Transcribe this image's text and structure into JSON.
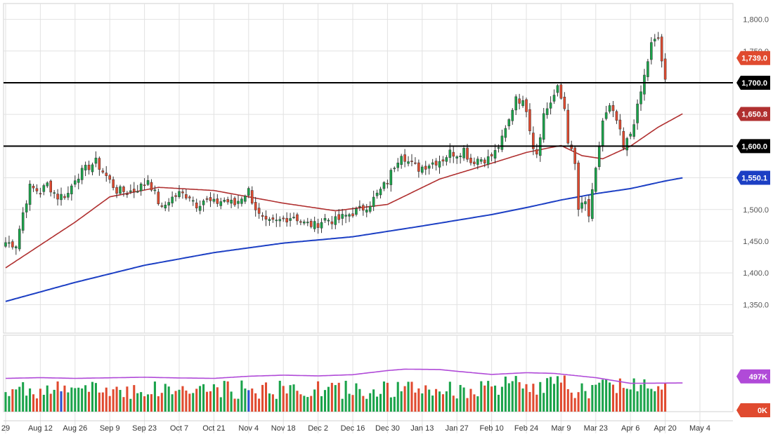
{
  "colors": {
    "up": "#1aa34a",
    "down": "#e04a2f",
    "ma50": "#b03030",
    "ma200": "#1c3fc4",
    "volume_avg": "#b04ad8",
    "grid": "#e2e2e2",
    "resistance": "#000000",
    "volume_special": "#2b4fd0"
  },
  "chart_data": {
    "type": "candlestick",
    "price_axis": {
      "range": [
        1305,
        1825
      ],
      "ticks": [
        1350,
        1400,
        1450,
        1500,
        1550,
        1600,
        1650,
        1700,
        1750,
        1800
      ],
      "tick_labels": [
        "1,350.0",
        "1,400.0",
        "1,450.0",
        "1,500.0",
        "1,550.0",
        "1,600.0",
        "1,650.0",
        "1,700.0",
        "1,750.0",
        "1,800.0"
      ]
    },
    "time_axis": {
      "labels": [
        "29",
        "Aug 12",
        "Aug 26",
        "Sep 9",
        "Sep 23",
        "Oct 7",
        "Oct 21",
        "Nov 4",
        "Nov 18",
        "Dec 2",
        "Dec 16",
        "Dec 30",
        "Jan 13",
        "Jan 27",
        "Feb 10",
        "Feb 24",
        "Mar 9",
        "Mar 23",
        "Apr 6",
        "Apr 20",
        "May 4"
      ],
      "label_positions": [
        0,
        10,
        20,
        30,
        40,
        50,
        60,
        70,
        80,
        90,
        100,
        110,
        120,
        130,
        140,
        150,
        160,
        170,
        180,
        190,
        200
      ]
    },
    "horizontal_lines": [
      {
        "value": 1700,
        "label": "1,700.0"
      },
      {
        "value": 1600,
        "label": "1,600.0"
      }
    ],
    "price_badges": [
      {
        "value": 1739,
        "label": "1,739.0",
        "color": "#e04a2f"
      },
      {
        "value": 1700,
        "label": "1,700.0",
        "color": "#000000"
      },
      {
        "value": 1650.8,
        "label": "1,650.8",
        "color": "#b03030"
      },
      {
        "value": 1600,
        "label": "1,600.0",
        "color": "#000000"
      },
      {
        "value": 1550.1,
        "label": "1,550.1",
        "color": "#1c3fc4"
      }
    ],
    "candle_count": 191,
    "anchors": [
      [
        0,
        1448
      ],
      [
        3,
        1445
      ],
      [
        5,
        1495
      ],
      [
        7,
        1535
      ],
      [
        10,
        1528
      ],
      [
        12,
        1540
      ],
      [
        15,
        1520
      ],
      [
        18,
        1525
      ],
      [
        20,
        1550
      ],
      [
        24,
        1568
      ],
      [
        26,
        1575
      ],
      [
        28,
        1560
      ],
      [
        30,
        1545
      ],
      [
        32,
        1530
      ],
      [
        35,
        1528
      ],
      [
        37,
        1530
      ],
      [
        40,
        1540
      ],
      [
        41,
        1548
      ],
      [
        43,
        1525
      ],
      [
        45,
        1500
      ],
      [
        47,
        1515
      ],
      [
        50,
        1525
      ],
      [
        53,
        1522
      ],
      [
        55,
        1508
      ],
      [
        57,
        1515
      ],
      [
        60,
        1510
      ],
      [
        63,
        1515
      ],
      [
        66,
        1508
      ],
      [
        68,
        1520
      ],
      [
        70,
        1530
      ],
      [
        71,
        1515
      ],
      [
        73,
        1490
      ],
      [
        75,
        1478
      ],
      [
        78,
        1480
      ],
      [
        80,
        1485
      ],
      [
        83,
        1490
      ],
      [
        86,
        1478
      ],
      [
        89,
        1475
      ],
      [
        92,
        1485
      ],
      [
        95,
        1482
      ],
      [
        98,
        1490
      ],
      [
        100,
        1495
      ],
      [
        103,
        1502
      ],
      [
        105,
        1510
      ],
      [
        108,
        1530
      ],
      [
        110,
        1545
      ],
      [
        112,
        1570
      ],
      [
        114,
        1590
      ],
      [
        116,
        1575
      ],
      [
        119,
        1565
      ],
      [
        122,
        1572
      ],
      [
        126,
        1580
      ],
      [
        128,
        1590
      ],
      [
        130,
        1588
      ],
      [
        132,
        1595
      ],
      [
        134,
        1575
      ],
      [
        136,
        1580
      ],
      [
        139,
        1580
      ],
      [
        141,
        1590
      ],
      [
        143,
        1610
      ],
      [
        145,
        1640
      ],
      [
        147,
        1680
      ],
      [
        150,
        1660
      ],
      [
        152,
        1600
      ],
      [
        153,
        1590
      ],
      [
        155,
        1650
      ],
      [
        157,
        1670
      ],
      [
        159,
        1690
      ],
      [
        161,
        1660
      ],
      [
        162,
        1610
      ],
      [
        164,
        1570
      ],
      [
        165,
        1500
      ],
      [
        167,
        1510
      ],
      [
        168,
        1490
      ],
      [
        170,
        1560
      ],
      [
        172,
        1640
      ],
      [
        174,
        1660
      ],
      [
        176,
        1640
      ],
      [
        177,
        1620
      ],
      [
        178,
        1595
      ],
      [
        180,
        1620
      ],
      [
        182,
        1660
      ],
      [
        184,
        1710
      ],
      [
        186,
        1760
      ],
      [
        188,
        1770
      ],
      [
        190,
        1700
      ],
      [
        192,
        1720
      ],
      [
        194,
        1745
      ],
      [
        195,
        1739
      ]
    ],
    "ma50_anchors": [
      [
        0,
        1408
      ],
      [
        20,
        1480
      ],
      [
        30,
        1520
      ],
      [
        44,
        1535
      ],
      [
        60,
        1530
      ],
      [
        80,
        1510
      ],
      [
        95,
        1498
      ],
      [
        110,
        1508
      ],
      [
        125,
        1548
      ],
      [
        140,
        1573
      ],
      [
        150,
        1590
      ],
      [
        160,
        1601
      ],
      [
        166,
        1585
      ],
      [
        172,
        1580
      ],
      [
        180,
        1600
      ],
      [
        188,
        1630
      ],
      [
        195,
        1651
      ]
    ],
    "ma200_anchors": [
      [
        0,
        1355
      ],
      [
        20,
        1385
      ],
      [
        40,
        1412
      ],
      [
        60,
        1432
      ],
      [
        80,
        1447
      ],
      [
        100,
        1457
      ],
      [
        120,
        1474
      ],
      [
        140,
        1492
      ],
      [
        150,
        1503
      ],
      [
        160,
        1515
      ],
      [
        170,
        1525
      ],
      [
        180,
        1533
      ],
      [
        190,
        1545
      ],
      [
        195,
        1550
      ]
    ],
    "volume": {
      "range": [
        0,
        1000
      ],
      "avg_level": 497,
      "avg_label": "497K",
      "zero_label": "0K",
      "avg_anchors": [
        [
          0,
          470
        ],
        [
          10,
          480
        ],
        [
          20,
          470
        ],
        [
          30,
          478
        ],
        [
          40,
          486
        ],
        [
          50,
          476
        ],
        [
          60,
          470
        ],
        [
          70,
          500
        ],
        [
          80,
          515
        ],
        [
          90,
          505
        ],
        [
          100,
          522
        ],
        [
          110,
          580
        ],
        [
          115,
          600
        ],
        [
          125,
          595
        ],
        [
          130,
          570
        ],
        [
          140,
          525
        ],
        [
          150,
          550
        ],
        [
          158,
          540
        ],
        [
          170,
          480
        ],
        [
          180,
          400
        ],
        [
          195,
          405
        ]
      ]
    }
  }
}
